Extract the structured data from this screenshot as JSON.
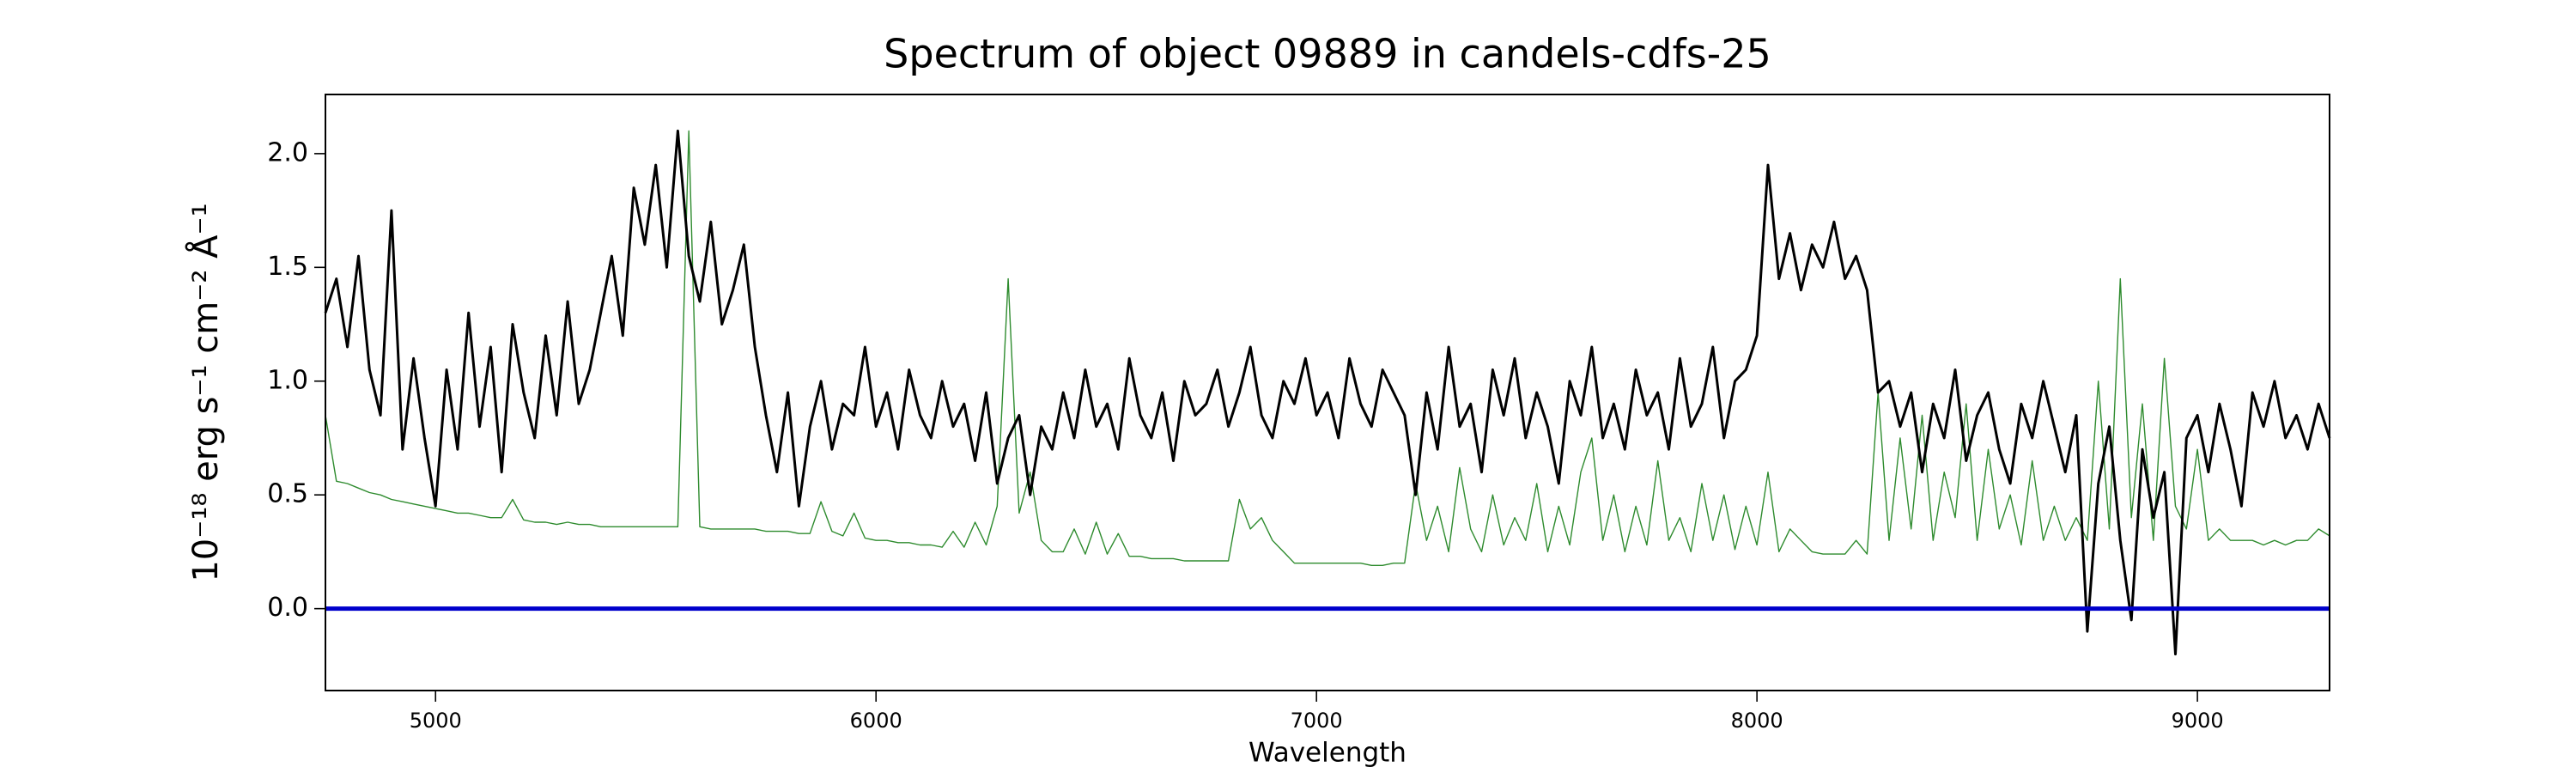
{
  "chart_data": {
    "type": "line",
    "title": "Spectrum of object 09889 in candels-cdfs-25",
    "xlabel": "Wavelength",
    "ylabel": "10⁻¹⁸ erg s⁻¹ cm⁻² Å⁻¹",
    "xlim": [
      4750,
      9300
    ],
    "ylim": [
      -0.36,
      2.26
    ],
    "xticks": [
      5000,
      6000,
      7000,
      8000,
      9000
    ],
    "yticks": [
      {
        "value": 0,
        "label": "0.0"
      },
      0.5,
      {
        "value": 1,
        "label": "1.0"
      },
      1.5,
      {
        "value": 2,
        "label": "2.0"
      }
    ],
    "grid": false,
    "x": [
      4750,
      4775,
      4800,
      4825,
      4850,
      4875,
      4900,
      4925,
      4950,
      4975,
      5000,
      5025,
      5050,
      5075,
      5100,
      5125,
      5150,
      5175,
      5200,
      5225,
      5250,
      5275,
      5300,
      5325,
      5350,
      5375,
      5400,
      5425,
      5450,
      5475,
      5500,
      5525,
      5550,
      5575,
      5600,
      5625,
      5650,
      5675,
      5700,
      5725,
      5750,
      5775,
      5800,
      5825,
      5850,
      5875,
      5900,
      5925,
      5950,
      5975,
      6000,
      6025,
      6050,
      6075,
      6100,
      6125,
      6150,
      6175,
      6200,
      6225,
      6250,
      6275,
      6300,
      6325,
      6350,
      6375,
      6400,
      6425,
      6450,
      6475,
      6500,
      6525,
      6550,
      6575,
      6600,
      6625,
      6650,
      6675,
      6700,
      6725,
      6750,
      6775,
      6800,
      6825,
      6850,
      6875,
      6900,
      6925,
      6950,
      6975,
      7000,
      7025,
      7050,
      7075,
      7100,
      7125,
      7150,
      7175,
      7200,
      7225,
      7250,
      7275,
      7300,
      7325,
      7350,
      7375,
      7400,
      7425,
      7450,
      7475,
      7500,
      7525,
      7550,
      7575,
      7600,
      7625,
      7650,
      7675,
      7700,
      7725,
      7750,
      7775,
      7800,
      7825,
      7850,
      7875,
      7900,
      7925,
      7950,
      7975,
      8000,
      8025,
      8050,
      8075,
      8100,
      8125,
      8150,
      8175,
      8200,
      8225,
      8250,
      8275,
      8300,
      8325,
      8350,
      8375,
      8400,
      8425,
      8450,
      8475,
      8500,
      8525,
      8550,
      8575,
      8600,
      8625,
      8650,
      8675,
      8700,
      8725,
      8750,
      8775,
      8800,
      8825,
      8850,
      8875,
      8900,
      8925,
      8950,
      8975,
      9000,
      9025,
      9050,
      9075,
      9100,
      9125,
      9150,
      9175,
      9200,
      9225,
      9250,
      9275,
      9300
    ],
    "series": [
      {
        "color": "#2e8b2e",
        "width": 1.4,
        "values": [
          0.85,
          0.56,
          0.55,
          0.53,
          0.51,
          0.5,
          0.48,
          0.47,
          0.46,
          0.45,
          0.44,
          0.43,
          0.42,
          0.42,
          0.41,
          0.4,
          0.4,
          0.48,
          0.39,
          0.38,
          0.38,
          0.37,
          0.38,
          0.37,
          0.37,
          0.36,
          0.36,
          0.36,
          0.36,
          0.36,
          0.36,
          0.36,
          0.36,
          2.1,
          0.36,
          0.35,
          0.35,
          0.35,
          0.35,
          0.35,
          0.34,
          0.34,
          0.34,
          0.33,
          0.33,
          0.47,
          0.34,
          0.32,
          0.42,
          0.31,
          0.3,
          0.3,
          0.29,
          0.29,
          0.28,
          0.28,
          0.27,
          0.34,
          0.27,
          0.38,
          0.28,
          0.45,
          1.45,
          0.42,
          0.6,
          0.3,
          0.25,
          0.25,
          0.35,
          0.24,
          0.38,
          0.24,
          0.33,
          0.23,
          0.23,
          0.22,
          0.22,
          0.22,
          0.21,
          0.21,
          0.21,
          0.21,
          0.21,
          0.48,
          0.35,
          0.4,
          0.3,
          0.25,
          0.2,
          0.2,
          0.2,
          0.2,
          0.2,
          0.2,
          0.2,
          0.19,
          0.19,
          0.2,
          0.2,
          0.55,
          0.3,
          0.45,
          0.25,
          0.62,
          0.35,
          0.25,
          0.5,
          0.28,
          0.4,
          0.3,
          0.55,
          0.25,
          0.45,
          0.28,
          0.6,
          0.75,
          0.3,
          0.5,
          0.25,
          0.45,
          0.28,
          0.65,
          0.3,
          0.4,
          0.25,
          0.55,
          0.3,
          0.5,
          0.26,
          0.45,
          0.28,
          0.6,
          0.25,
          0.35,
          0.3,
          0.25,
          0.24,
          0.24,
          0.24,
          0.3,
          0.24,
          0.95,
          0.3,
          0.75,
          0.35,
          0.85,
          0.3,
          0.6,
          0.4,
          0.9,
          0.3,
          0.7,
          0.35,
          0.5,
          0.28,
          0.65,
          0.3,
          0.45,
          0.3,
          0.4,
          0.3,
          1.0,
          0.35,
          1.45,
          0.4,
          0.9,
          0.3,
          1.1,
          0.45,
          0.35,
          0.7,
          0.3,
          0.35,
          0.3,
          0.3,
          0.3,
          0.28,
          0.3,
          0.28,
          0.3,
          0.3,
          0.35,
          0.32
        ]
      },
      {
        "color": "#000000",
        "width": 3,
        "values": [
          1.3,
          1.45,
          1.15,
          1.55,
          1.05,
          0.85,
          1.75,
          0.7,
          1.1,
          0.75,
          0.45,
          1.05,
          0.7,
          1.3,
          0.8,
          1.15,
          0.6,
          1.25,
          0.95,
          0.75,
          1.2,
          0.85,
          1.35,
          0.9,
          1.05,
          1.3,
          1.55,
          1.2,
          1.85,
          1.6,
          1.95,
          1.5,
          2.1,
          1.55,
          1.35,
          1.7,
          1.25,
          1.4,
          1.6,
          1.15,
          0.85,
          0.6,
          0.95,
          0.45,
          0.8,
          1.0,
          0.7,
          0.9,
          0.85,
          1.15,
          0.8,
          0.95,
          0.7,
          1.05,
          0.85,
          0.75,
          1.0,
          0.8,
          0.9,
          0.65,
          0.95,
          0.55,
          0.75,
          0.85,
          0.5,
          0.8,
          0.7,
          0.95,
          0.75,
          1.05,
          0.8,
          0.9,
          0.7,
          1.1,
          0.85,
          0.75,
          0.95,
          0.65,
          1.0,
          0.85,
          0.9,
          1.05,
          0.8,
          0.95,
          1.15,
          0.85,
          0.75,
          1.0,
          0.9,
          1.1,
          0.85,
          0.95,
          0.75,
          1.1,
          0.9,
          0.8,
          1.05,
          0.95,
          0.85,
          0.5,
          0.95,
          0.7,
          1.15,
          0.8,
          0.9,
          0.6,
          1.05,
          0.85,
          1.1,
          0.75,
          0.95,
          0.8,
          0.55,
          1.0,
          0.85,
          1.15,
          0.75,
          0.9,
          0.7,
          1.05,
          0.85,
          0.95,
          0.7,
          1.1,
          0.8,
          0.9,
          1.15,
          0.75,
          1.0,
          1.05,
          1.2,
          1.95,
          1.45,
          1.65,
          1.4,
          1.6,
          1.5,
          1.7,
          1.45,
          1.55,
          1.4,
          0.95,
          1.0,
          0.8,
          0.95,
          0.6,
          0.9,
          0.75,
          1.05,
          0.65,
          0.85,
          0.95,
          0.7,
          0.55,
          0.9,
          0.75,
          1.0,
          0.8,
          0.6,
          0.85,
          -0.1,
          0.55,
          0.8,
          0.3,
          -0.05,
          0.7,
          0.4,
          0.6,
          -0.2,
          0.75,
          0.85,
          0.6,
          0.9,
          0.7,
          0.45,
          0.95,
          0.8,
          1.0,
          0.75,
          0.85,
          0.7,
          0.9,
          0.75
        ]
      }
    ],
    "hlines": [
      {
        "value": 0,
        "color": "#0000cc"
      }
    ]
  }
}
